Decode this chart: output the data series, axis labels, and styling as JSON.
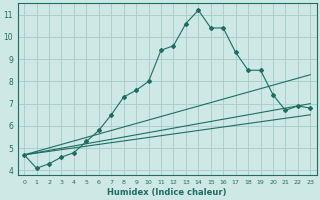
{
  "bg_color": "#cde8e5",
  "grid_color": "#aacfcc",
  "line_color": "#1e6e60",
  "xlabel": "Humidex (Indice chaleur)",
  "xlim": [
    -0.5,
    23.5
  ],
  "ylim": [
    3.8,
    11.5
  ],
  "yticks": [
    4,
    5,
    6,
    7,
    8,
    9,
    10,
    11
  ],
  "xticks": [
    0,
    1,
    2,
    3,
    4,
    5,
    6,
    7,
    8,
    9,
    10,
    11,
    12,
    13,
    14,
    15,
    16,
    17,
    18,
    19,
    20,
    21,
    22,
    23
  ],
  "series1_x": [
    0,
    1,
    2,
    3,
    4,
    5,
    6,
    7,
    8,
    9,
    10,
    11,
    12,
    13,
    14,
    15,
    16,
    17,
    18,
    19,
    20,
    21,
    22,
    23
  ],
  "series1_y": [
    4.7,
    4.1,
    4.3,
    4.6,
    4.8,
    5.3,
    5.8,
    6.5,
    7.3,
    7.6,
    8.0,
    9.4,
    9.6,
    10.6,
    11.2,
    10.4,
    10.4,
    9.3,
    8.5,
    8.5,
    7.4,
    6.7,
    6.9,
    6.8
  ],
  "series2_x": [
    0,
    23
  ],
  "series2_y": [
    4.7,
    6.5
  ],
  "series3_x": [
    0,
    23
  ],
  "series3_y": [
    4.7,
    7.0
  ],
  "series4_x": [
    0,
    23
  ],
  "series4_y": [
    4.7,
    8.3
  ]
}
